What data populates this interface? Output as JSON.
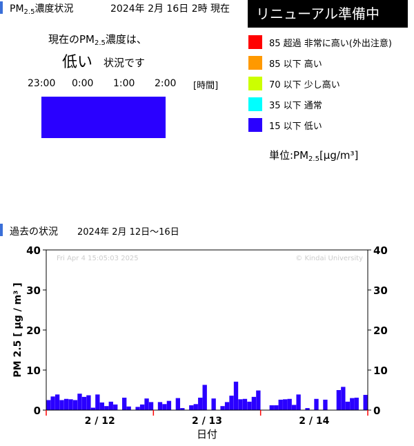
{
  "header": {
    "title_main": "PM",
    "title_sub": "2.5",
    "title_suffix": "濃度状況",
    "datetime": "2024年 2月 16日  2時 現在",
    "renewal_badge": "リニューアル準備中",
    "colors": {
      "marker": "#3a6fd8",
      "badge_bg": "#000000"
    }
  },
  "current": {
    "line1_prefix": "現在のPM",
    "line1_sub": "2.5",
    "line1_suffix": "濃度は、",
    "level": "低い",
    "level_suffix": "状況です",
    "hours": [
      "23:00",
      "0:00",
      "1:00",
      "2:00"
    ],
    "hours_unit": "[時間]",
    "hour_levels": [
      "15 以下 低い",
      "15 以下 低い",
      "15 以下 低い"
    ],
    "bar_color": "#2a00ff"
  },
  "legend": {
    "items": [
      {
        "label": "85 超過 非常に高い(外出注意)",
        "color": "#ff0000"
      },
      {
        "label": "85 以下 高い",
        "color": "#ff9900"
      },
      {
        "label": "70 以下 少し高い",
        "color": "#ccff00"
      },
      {
        "label": "35 以下 通常",
        "color": "#00ffff"
      },
      {
        "label": "15 以下 低い",
        "color": "#2a00ff"
      }
    ],
    "unit_prefix": "単位:PM",
    "unit_sub": "2.5",
    "unit_suffix": "[μg/m³]"
  },
  "past": {
    "title": "過去の状況",
    "range": "2024年 2月 12日〜16日"
  },
  "chart_data": {
    "type": "bar",
    "watermark_left": "Fri Apr  4 15:05:03 2025",
    "watermark_right": "© Kindai University",
    "ylabel": "PM 2.5 [ μg / m³ ]",
    "xlabel": "日付",
    "ylim": [
      0,
      40
    ],
    "yticks": [
      0,
      10,
      20,
      30,
      40
    ],
    "grid": false,
    "bar_color": "#2a00ff",
    "day_labels": [
      "2 / 12",
      "2 / 13",
      "2 / 14"
    ],
    "values": [
      2.5,
      3.4,
      3.9,
      2.5,
      2.8,
      2.7,
      2.5,
      4.1,
      3.3,
      3.7,
      0.6,
      3.9,
      1.9,
      1.0,
      2.1,
      1.4,
      0,
      3.1,
      0.9,
      0,
      0.8,
      1.4,
      2.9,
      2.0,
      0,
      2.0,
      1.5,
      2.3,
      0,
      3.0,
      0.5,
      0,
      1.2,
      1.5,
      3.1,
      6.3,
      0,
      2.9,
      0,
      1.0,
      2.0,
      3.6,
      7.1,
      2.7,
      2.8,
      2.1,
      3.3,
      4.9,
      0,
      0,
      1.2,
      1.2,
      2.6,
      2.7,
      2.8,
      1.3,
      3.9,
      0,
      0.5,
      0,
      2.8,
      0,
      2.6,
      0,
      0,
      5.0,
      5.8,
      2.1,
      3.0,
      3.1,
      0,
      3.8
    ]
  }
}
